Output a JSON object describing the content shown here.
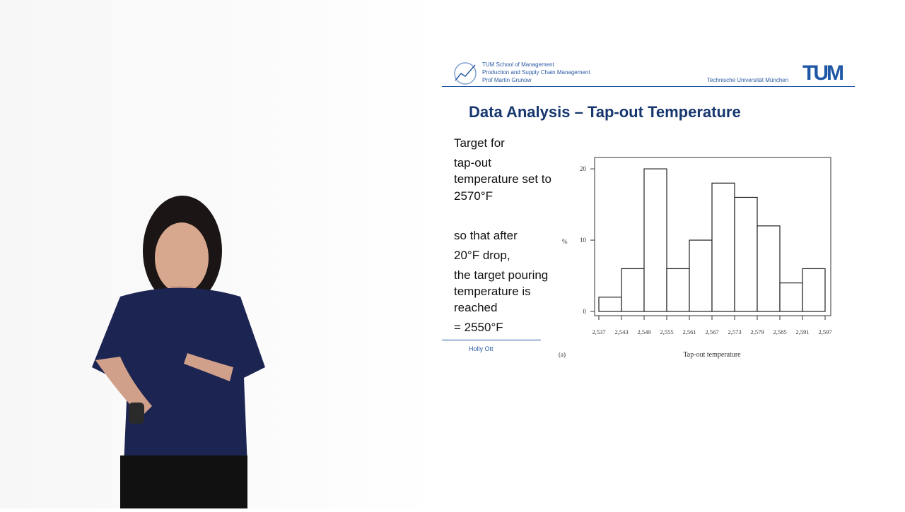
{
  "slide": {
    "header": {
      "line1": "TUM School of Management",
      "line2": "Production and Supply Chain Management",
      "line3": "Prof Martin Grunow",
      "university": "Technische Universität München",
      "logo_text": "TUM"
    },
    "title": "Data Analysis – Tap-out Temperature",
    "body": [
      "Target for",
      "tap-out",
      "temperature set to",
      "2570°F",
      "so that after",
      "20°F drop,",
      "the target pouring",
      "temperature is",
      "reached",
      "= 2550°F"
    ],
    "footer": "Holly Ott"
  },
  "colors": {
    "accent": "#1f57a6",
    "title": "#17376f"
  },
  "chart_data": {
    "type": "bar",
    "subtype": "histogram",
    "x_tick_labels": [
      "2,537",
      "2,543",
      "2,549",
      "2,555",
      "2,561",
      "2,567",
      "2,573",
      "2,579",
      "2,585",
      "2,591",
      "2,597"
    ],
    "values": [
      2,
      6,
      20,
      6,
      10,
      18,
      16,
      12,
      4,
      6
    ],
    "y_ticks": [
      "0",
      "10",
      "20"
    ],
    "ylim": [
      0,
      21
    ],
    "ylabel": "%",
    "xlabel": "Tap-out temperature",
    "panel_label": "(a)",
    "grid": false
  }
}
